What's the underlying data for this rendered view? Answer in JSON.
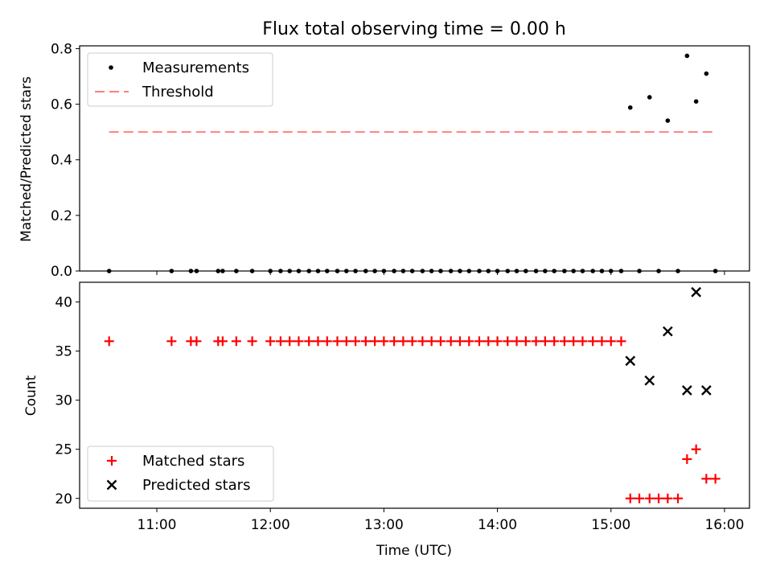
{
  "chart_data": [
    {
      "type": "scatter",
      "title": "Flux total observing time = 0.00 h",
      "xlabel": "",
      "ylabel": "Matched/Predicted stars",
      "ylim": [
        0,
        0.81
      ],
      "yticks": [
        "0.0",
        "0.2",
        "0.4",
        "0.6",
        "0.8"
      ],
      "ytick_values": [
        0,
        0.2,
        0.4,
        0.6,
        0.8
      ],
      "legend_position": "top-left",
      "legend": [
        "Measurements",
        "Threshold"
      ],
      "colors": {
        "measurements": "#000000",
        "threshold": "#ff7f7f"
      },
      "threshold": {
        "y": 0.5,
        "x_start": 10.58,
        "x_end": 15.92
      },
      "series": [
        {
          "name": "Measurements",
          "x": [
            10.58,
            11.13,
            11.3,
            11.35,
            11.54,
            11.58,
            11.7,
            11.84,
            12.0,
            12.09,
            12.17,
            12.25,
            12.34,
            12.42,
            12.5,
            12.59,
            12.67,
            12.75,
            12.84,
            12.92,
            13.0,
            13.09,
            13.17,
            13.25,
            13.34,
            13.42,
            13.5,
            13.59,
            13.67,
            13.75,
            13.84,
            13.92,
            14.0,
            14.09,
            14.17,
            14.25,
            14.34,
            14.42,
            14.5,
            14.59,
            14.67,
            14.75,
            14.84,
            14.92,
            15.0,
            15.09,
            15.17,
            15.25,
            15.34,
            15.42,
            15.5,
            15.59,
            15.67,
            15.75,
            15.84,
            15.92
          ],
          "y": [
            0,
            0,
            0,
            0,
            0,
            0,
            0,
            0,
            0,
            0,
            0,
            0,
            0,
            0,
            0,
            0,
            0,
            0,
            0,
            0,
            0,
            0,
            0,
            0,
            0,
            0,
            0,
            0,
            0,
            0,
            0,
            0,
            0,
            0,
            0,
            0,
            0,
            0,
            0,
            0,
            0,
            0,
            0,
            0,
            0,
            0,
            0.588,
            0,
            0.625,
            0,
            0.541,
            0,
            0.774,
            0.61,
            0.71,
            0
          ]
        }
      ]
    },
    {
      "type": "scatter",
      "title": "",
      "xlabel": "Time (UTC)",
      "ylabel": "Count",
      "xlim": [
        10.32,
        16.22
      ],
      "ylim": [
        19,
        42
      ],
      "xticks": [
        "11:00",
        "12:00",
        "13:00",
        "14:00",
        "15:00",
        "16:00"
      ],
      "xtick_values": [
        11,
        12,
        13,
        14,
        15,
        16
      ],
      "yticks": [
        "20",
        "25",
        "30",
        "35",
        "40"
      ],
      "ytick_values": [
        20,
        25,
        30,
        35,
        40
      ],
      "legend_position": "bottom-left",
      "legend": [
        "Matched stars",
        "Predicted stars"
      ],
      "colors": {
        "matched": "#ff0000",
        "predicted": "#000000"
      },
      "series": [
        {
          "name": "Matched stars",
          "x": [
            10.58,
            11.13,
            11.3,
            11.35,
            11.54,
            11.58,
            11.7,
            11.84,
            12.0,
            12.09,
            12.17,
            12.25,
            12.34,
            12.42,
            12.5,
            12.59,
            12.67,
            12.75,
            12.84,
            12.92,
            13.0,
            13.09,
            13.17,
            13.25,
            13.34,
            13.42,
            13.5,
            13.59,
            13.67,
            13.75,
            13.84,
            13.92,
            14.0,
            14.09,
            14.17,
            14.25,
            14.34,
            14.42,
            14.5,
            14.59,
            14.67,
            14.75,
            14.84,
            14.92,
            15.0,
            15.09,
            15.17,
            15.25,
            15.34,
            15.42,
            15.5,
            15.59,
            15.67,
            15.75,
            15.84,
            15.92
          ],
          "y": [
            36,
            36,
            36,
            36,
            36,
            36,
            36,
            36,
            36,
            36,
            36,
            36,
            36,
            36,
            36,
            36,
            36,
            36,
            36,
            36,
            36,
            36,
            36,
            36,
            36,
            36,
            36,
            36,
            36,
            36,
            36,
            36,
            36,
            36,
            36,
            36,
            36,
            36,
            36,
            36,
            36,
            36,
            36,
            36,
            36,
            36,
            20,
            20,
            20,
            20,
            20,
            20,
            24,
            25,
            22,
            22
          ]
        },
        {
          "name": "Predicted stars",
          "x": [
            15.17,
            15.34,
            15.5,
            15.67,
            15.75,
            15.84
          ],
          "y": [
            34,
            32,
            37,
            31,
            41,
            31
          ]
        }
      ]
    }
  ]
}
